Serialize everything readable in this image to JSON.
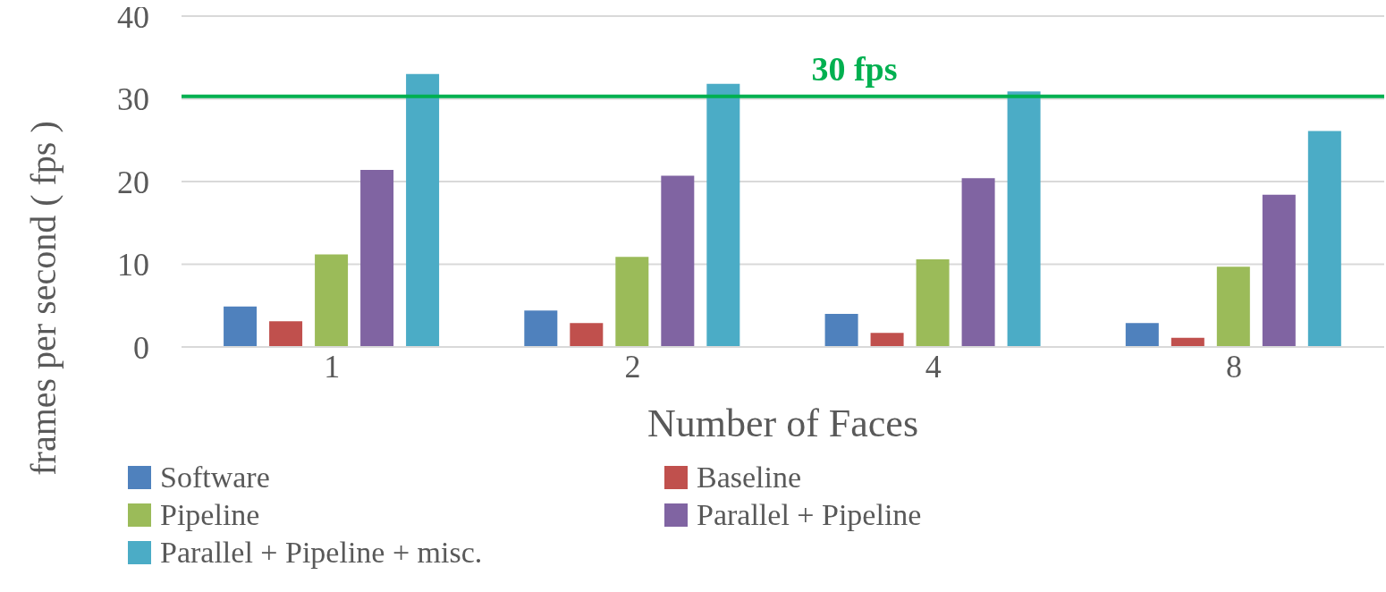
{
  "chart_data": {
    "type": "bar",
    "xlabel": "Number of Faces",
    "ylabel": "frames per second ( fps )",
    "categories": [
      "1",
      "2",
      "4",
      "8"
    ],
    "series": [
      {
        "name": "Software",
        "color": "#4f81bd",
        "values": [
          4.9,
          4.4,
          4.0,
          2.9
        ]
      },
      {
        "name": "Baseline",
        "color": "#c0504d",
        "values": [
          3.1,
          2.9,
          1.7,
          1.1
        ]
      },
      {
        "name": "Pipeline",
        "color": "#9bbb59",
        "values": [
          11.2,
          10.9,
          10.6,
          9.7
        ]
      },
      {
        "name": "Parallel + Pipeline",
        "color": "#8064a2",
        "values": [
          21.4,
          20.7,
          20.4,
          18.4
        ]
      },
      {
        "name": "Parallel + Pipeline + misc.",
        "color": "#4bacc6",
        "values": [
          33.0,
          31.8,
          30.9,
          26.1
        ]
      }
    ],
    "ylim": [
      0,
      40
    ],
    "yticks": [
      0,
      10,
      20,
      30,
      40
    ],
    "grid": "y",
    "legend": "bottom",
    "ref_lines": [
      {
        "axis": "y",
        "value": 30.3,
        "label": "30 fps",
        "color": "#00b050"
      }
    ]
  }
}
